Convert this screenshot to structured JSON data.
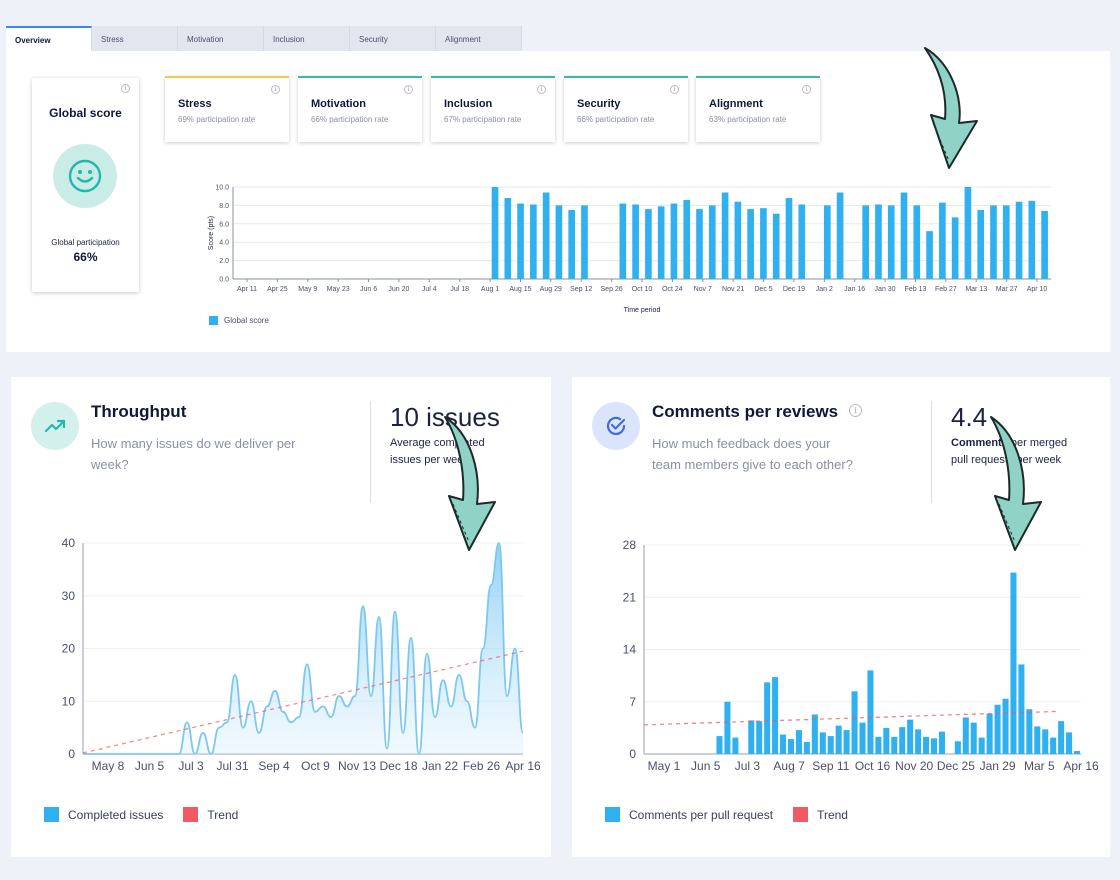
{
  "tabs": [
    "Overview",
    "Stress",
    "Motivation",
    "Inclusion",
    "Security",
    "Alignment"
  ],
  "global_score": {
    "title": "Global score",
    "participation_label": "Global participation",
    "participation_value": "66%",
    "info_glyph": "i",
    "icon": "smiley-icon"
  },
  "metrics": [
    {
      "title": "Stress",
      "subtitle": "69% participation rate",
      "accent": "#f2c94c"
    },
    {
      "title": "Motivation",
      "subtitle": "66% participation rate",
      "accent": "#3ab8b0"
    },
    {
      "title": "Inclusion",
      "subtitle": "67% participation rate",
      "accent": "#3ab8b0"
    },
    {
      "title": "Security",
      "subtitle": "66% participation rate",
      "accent": "#3ab8b0"
    },
    {
      "title": "Alignment",
      "subtitle": "63% participation rate",
      "accent": "#3ab8b0"
    }
  ],
  "colors": {
    "bar": "#2fb0f0",
    "trend": "#f25a63",
    "teal": "#3ab8b0",
    "area": "#7cc8f2"
  },
  "throughput": {
    "title": "Throughput",
    "description": "How many issues do we deliver per week?",
    "big_value": "10 issues",
    "caption": "Average completed issues per week",
    "legend": [
      "Completed issues",
      "Trend"
    ],
    "icon": "trending-up-icon"
  },
  "comments": {
    "title": "Comments per reviews",
    "description": "How much feedback does your team members give to each other?",
    "big_value": "4.4",
    "caption_bold": "Comments",
    "caption_rest": " per merged pull requests per week",
    "legend": [
      "Comments per pull request",
      "Trend"
    ],
    "icon": "check-circle-icon",
    "info_glyph": "i"
  },
  "chart_data": [
    {
      "type": "bar",
      "title": "",
      "xlabel": "Time period",
      "ylabel": "Score (pts)",
      "ylim": [
        0,
        10
      ],
      "yticks": [
        "0.0",
        "2.0",
        "4.0",
        "6.0",
        "8.0",
        "10.0"
      ],
      "xtick_labels": [
        "Apr 11",
        "Apr 25",
        "May 9",
        "May 23",
        "Jun 6",
        "Jun 20",
        "Jul 4",
        "Jul 18",
        "Aug 1",
        "Aug 15",
        "Aug 29",
        "Sep 12",
        "Sep 26",
        "Oct 10",
        "Oct 24",
        "Nov 7",
        "Nov 21",
        "Dec 5",
        "Dec 19",
        "Jan 2",
        "Jan 16",
        "Jan 30",
        "Feb 13",
        "Feb 27",
        "Mar 13",
        "Mar 27",
        "Apr 10"
      ],
      "series": [
        {
          "name": "Global score",
          "values": [
            null,
            null,
            null,
            null,
            null,
            null,
            null,
            null,
            null,
            null,
            null,
            null,
            null,
            null,
            null,
            null,
            null,
            null,
            null,
            null,
            10,
            8.8,
            8.2,
            8.1,
            9.4,
            8,
            7.5,
            8,
            null,
            null,
            8.2,
            8.1,
            7.6,
            7.9,
            8.2,
            8.6,
            7.6,
            8,
            9.4,
            8.4,
            7.6,
            7.7,
            7.1,
            8.8,
            8.1,
            null,
            8,
            9.4,
            null,
            8,
            8.1,
            8,
            9.4,
            8,
            5.2,
            8.3,
            6.7,
            10,
            7.5,
            8,
            8,
            8.4,
            8.5,
            7.4
          ]
        }
      ],
      "legend_position": "bottom-left",
      "grid": true
    },
    {
      "type": "area",
      "title": "",
      "ylim": [
        0,
        40
      ],
      "yticks": [
        0,
        10,
        20,
        30,
        40
      ],
      "xtick_labels": [
        "May 8",
        "Jun 5",
        "Jul 3",
        "Jul 31",
        "Sep 4",
        "Oct 9",
        "Nov 13",
        "Dec 18",
        "Jan 22",
        "Feb 26",
        "Apr 16"
      ],
      "series": [
        {
          "name": "Completed issues",
          "values": [
            0,
            0,
            0,
            0,
            0,
            0,
            0,
            0,
            0,
            0,
            0,
            0,
            0,
            6,
            0,
            4,
            0,
            5,
            6,
            15,
            5,
            10,
            4,
            9,
            12,
            8,
            6,
            7,
            17,
            8,
            9,
            7,
            11,
            9,
            11,
            28,
            11,
            26,
            1,
            27,
            4,
            22,
            0,
            19,
            7,
            14,
            9,
            15,
            10,
            5,
            20,
            32,
            40,
            11,
            20,
            4
          ]
        },
        {
          "name": "Trend",
          "start": 0.2,
          "end": 19.5
        }
      ],
      "legend_position": "bottom-left",
      "grid": true
    },
    {
      "type": "bar",
      "title": "",
      "ylim": [
        0,
        28
      ],
      "yticks": [
        0,
        7,
        14,
        21,
        28
      ],
      "xtick_labels": [
        "May 1",
        "Jun 5",
        "Jul 3",
        "Aug 7",
        "Sep 11",
        "Oct 16",
        "Nov 20",
        "Dec 25",
        "Jan 29",
        "Mar 5",
        "Apr 16"
      ],
      "series": [
        {
          "name": "Comments per pull request",
          "values": [
            0,
            0,
            0,
            0,
            0,
            0,
            0,
            0,
            0,
            2.4,
            7,
            2.2,
            0,
            4.5,
            4.4,
            9.6,
            10.3,
            2.6,
            2,
            3.2,
            1.6,
            5.3,
            2.9,
            2.4,
            3.8,
            3.2,
            8.4,
            4.2,
            11.2,
            2.3,
            3.5,
            2.3,
            3.6,
            4.6,
            3.3,
            2.3,
            2.1,
            3,
            0,
            1.7,
            4.9,
            4.2,
            2.2,
            5.4,
            6.6,
            7.4,
            24.3,
            12,
            6,
            3.7,
            3.3,
            2.2,
            4.4,
            2.9,
            0.4
          ]
        },
        {
          "name": "Trend",
          "start": 3.9,
          "end": 5.7
        }
      ],
      "legend_position": "bottom-left",
      "grid": true
    }
  ]
}
